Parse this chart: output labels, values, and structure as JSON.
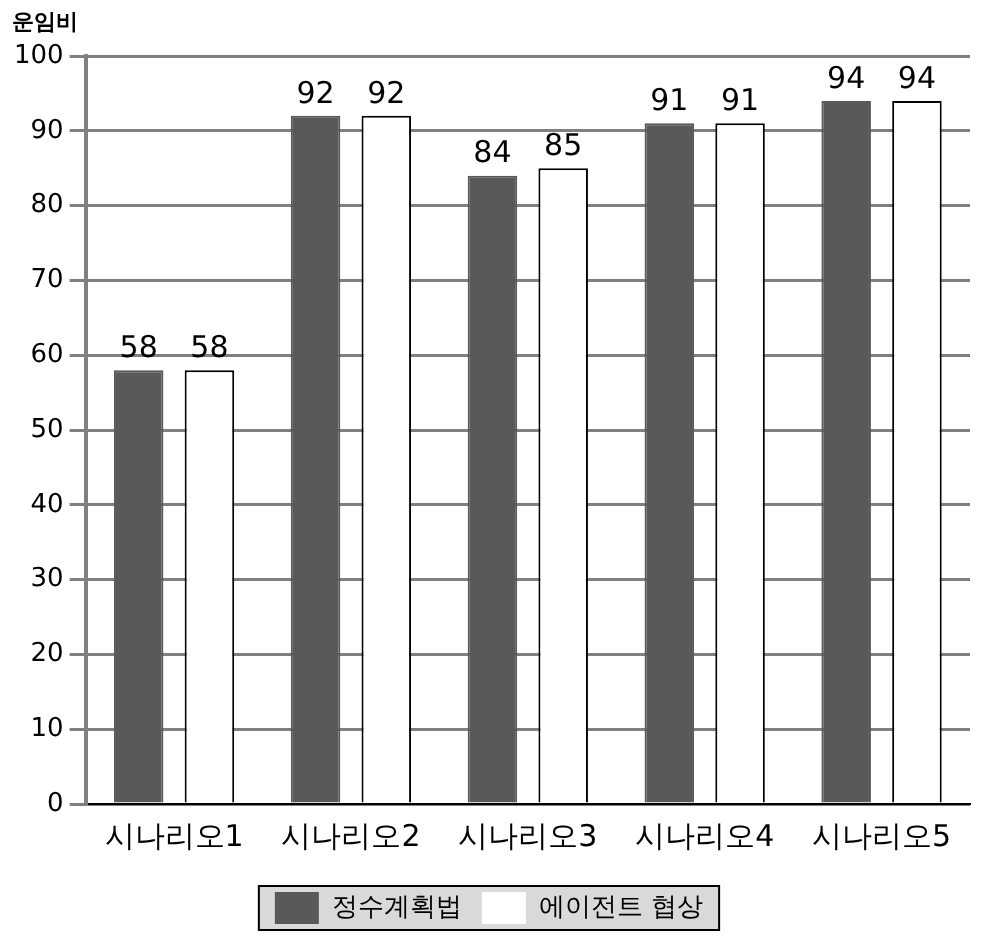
{
  "chart_data": {
    "type": "bar",
    "ylabel": "운임비",
    "categories": [
      "시나리오1",
      "시나리오2",
      "시나리오3",
      "시나리오4",
      "시나리오5"
    ],
    "series": [
      {
        "name": "정수계획법",
        "color": "#595959",
        "values": [
          58,
          92,
          84,
          91,
          94
        ]
      },
      {
        "name": "에이전트 협상",
        "color": "#ffffff",
        "values": [
          58,
          92,
          85,
          91,
          94
        ]
      }
    ],
    "ylim": [
      0,
      100
    ],
    "yticks": [
      0,
      10,
      20,
      30,
      40,
      50,
      60,
      70,
      80,
      90,
      100
    ],
    "grid": "y",
    "legend": "bottom",
    "data_labels": true
  }
}
